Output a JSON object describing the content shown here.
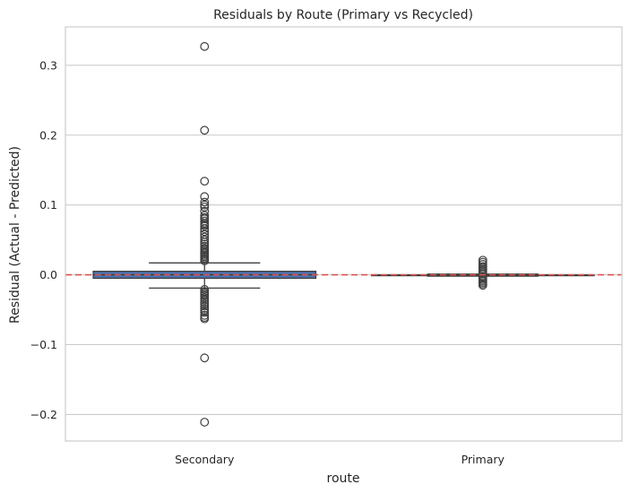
{
  "chart_data": {
    "type": "box",
    "title": "Residuals by Route (Primary vs Recycled)",
    "xlabel": "route",
    "ylabel": "Residual (Actual - Predicted)",
    "ylim": [
      -0.238,
      0.355
    ],
    "yticks": [
      0.3,
      0.2,
      0.1,
      0.0,
      -0.1,
      -0.2
    ],
    "ytick_labels": [
      "0.3",
      "0.2",
      "0.1",
      "0.0",
      "−0.1",
      "−0.2"
    ],
    "grid": "horizontal",
    "reference_line": {
      "y": 0.0,
      "style": "dashed",
      "color": "#d9534f"
    },
    "colors": {
      "box_fill": "#4c72b0",
      "box_edge": "#3f3f3f",
      "grid": "#cccccc",
      "frame": "#cccccc"
    },
    "categories": [
      "Secondary",
      "Primary"
    ],
    "boxes": [
      {
        "category": "Secondary",
        "q1": -0.005,
        "median": 0.0,
        "q3": 0.005,
        "whisker_low": -0.019,
        "whisker_high": 0.017,
        "outliers": [
          0.327,
          0.207,
          0.134,
          0.112,
          0.104,
          0.1,
          0.097,
          0.091,
          0.085,
          0.082,
          0.08,
          0.077,
          0.074,
          0.072,
          0.07,
          0.066,
          0.062,
          0.058,
          0.054,
          0.05,
          0.047,
          0.044,
          0.041,
          0.038,
          0.036,
          0.034,
          0.032,
          0.03,
          0.028,
          0.026,
          0.024,
          0.022,
          0.02,
          -0.021,
          -0.024,
          -0.026,
          -0.028,
          -0.03,
          -0.033,
          -0.036,
          -0.039,
          -0.042,
          -0.045,
          -0.048,
          -0.051,
          -0.054,
          -0.058,
          -0.061,
          -0.063,
          -0.119,
          -0.211
        ]
      },
      {
        "category": "Primary",
        "q1": -0.001,
        "median": -0.0005,
        "q3": 0.0,
        "whisker_low": -0.002,
        "whisker_high": 0.001,
        "outliers": [
          0.021,
          0.018,
          0.015,
          0.012,
          0.01,
          0.008,
          0.006,
          0.004,
          0.002,
          -0.003,
          -0.005,
          -0.007,
          -0.009,
          -0.011,
          -0.013,
          -0.015
        ]
      }
    ]
  }
}
